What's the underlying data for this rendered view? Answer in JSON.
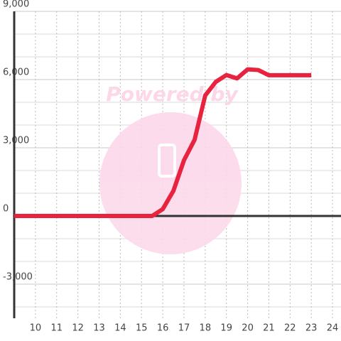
{
  "chart_data": {
    "type": "line",
    "watermark": "Powered by",
    "x": [
      9,
      15.5,
      16,
      16.5,
      17,
      17.5,
      18,
      18.5,
      19,
      19.5,
      20,
      20.5,
      21,
      21.5,
      22,
      22.5,
      23
    ],
    "series": [
      {
        "color": "#e8233f",
        "values": [
          0,
          0,
          300,
          1100,
          2450,
          3350,
          5300,
          5900,
          6200,
          6050,
          6450,
          6420,
          6190,
          6190,
          6190,
          6190,
          6190
        ]
      }
    ],
    "xlim": [
      9,
      24.4
    ],
    "xticks": [
      10,
      11,
      12,
      13,
      14,
      15,
      16,
      17,
      18,
      19,
      20,
      21,
      22,
      23,
      24
    ],
    "ylim": [
      -4500,
      9000
    ],
    "yticks": [
      {
        "value": -3000,
        "label": "-3,000"
      },
      0,
      {
        "value": 3000,
        "label": "3,000"
      },
      {
        "value": 6000,
        "label": "6,000"
      },
      {
        "value": 9000,
        "label": "9,000"
      }
    ],
    "grid": true,
    "grid_minor_step": 1000
  }
}
